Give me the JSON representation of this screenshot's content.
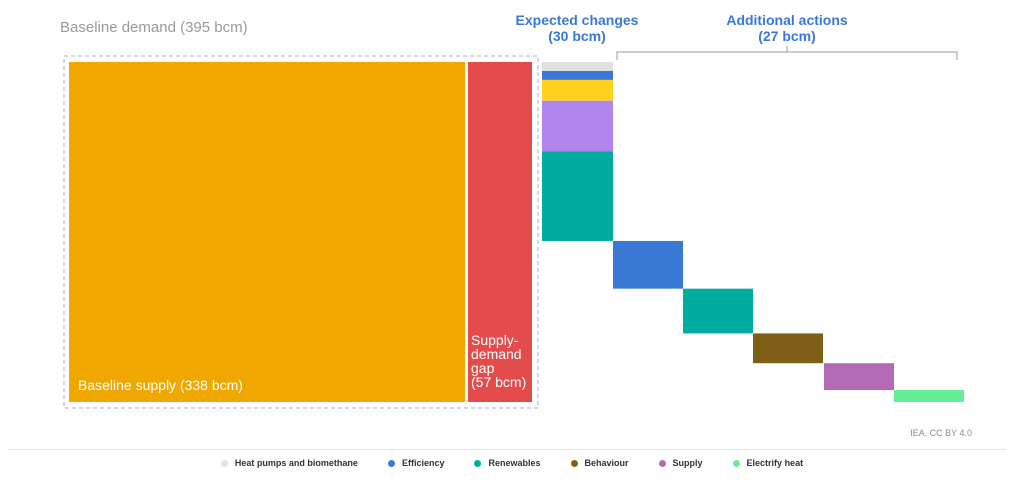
{
  "chart_data": {
    "type": "bar",
    "units": "bcm",
    "baseline_demand_label": "Baseline demand (395 bcm)",
    "baseline_supply_label": "Baseline supply (338 bcm)",
    "gap_label_lines": [
      "Supply-",
      "demand",
      "gap",
      "(57 bcm)"
    ],
    "expected_changes_title": [
      "Expected changes",
      "(30 bcm)"
    ],
    "additional_actions_title": [
      "Additional actions",
      "(27 bcm)"
    ],
    "baseline_demand": 395,
    "baseline_supply": 338,
    "supply_demand_gap": 57,
    "expected_changes_total": 30,
    "additional_actions_total": 27,
    "expected_changes": [
      {
        "category": "Heat pumps and biomethane",
        "value": 1.5
      },
      {
        "category": "Efficiency",
        "value": 1.5
      },
      {
        "category": "Supply",
        "value": 3.5
      },
      {
        "category": "Renewables",
        "value": 8.5
      },
      {
        "category": "Heat pumps and biomethane",
        "value": 15
      }
    ],
    "expected_changes_colors": [
      "#e0e0e0",
      "#3a78d6",
      "#ffd11f",
      "#b085ee",
      "#00ab9f"
    ],
    "additional_actions": [
      {
        "category": "Efficiency",
        "value": 8
      },
      {
        "category": "Renewables",
        "value": 7.5
      },
      {
        "category": "Behaviour",
        "value": 5
      },
      {
        "category": "Supply",
        "value": 4.5
      },
      {
        "category": "Electrify heat",
        "value": 2
      }
    ],
    "legend": [
      {
        "name": "Heat pumps and biomethane",
        "color": "#e3e3e3"
      },
      {
        "name": "Efficiency",
        "color": "#3a78d6"
      },
      {
        "name": "Renewables",
        "color": "#00ab9f"
      },
      {
        "name": "Behaviour",
        "color": "#7f5f15"
      },
      {
        "name": "Supply",
        "color": "#b36ab6"
      },
      {
        "name": "Electrify heat",
        "color": "#63ee95"
      }
    ],
    "colors": {
      "baseline_supply": "#f0a800",
      "gap": "#e44b4b",
      "Efficiency": "#3a78d6",
      "Renewables": "#00ab9f",
      "Behaviour": "#7f5f15",
      "Supply": "#b36ab6",
      "Electrify heat": "#63ee95",
      "title_blue": "#3a78d6"
    }
  },
  "credit": "IEA. CC BY 4.0"
}
